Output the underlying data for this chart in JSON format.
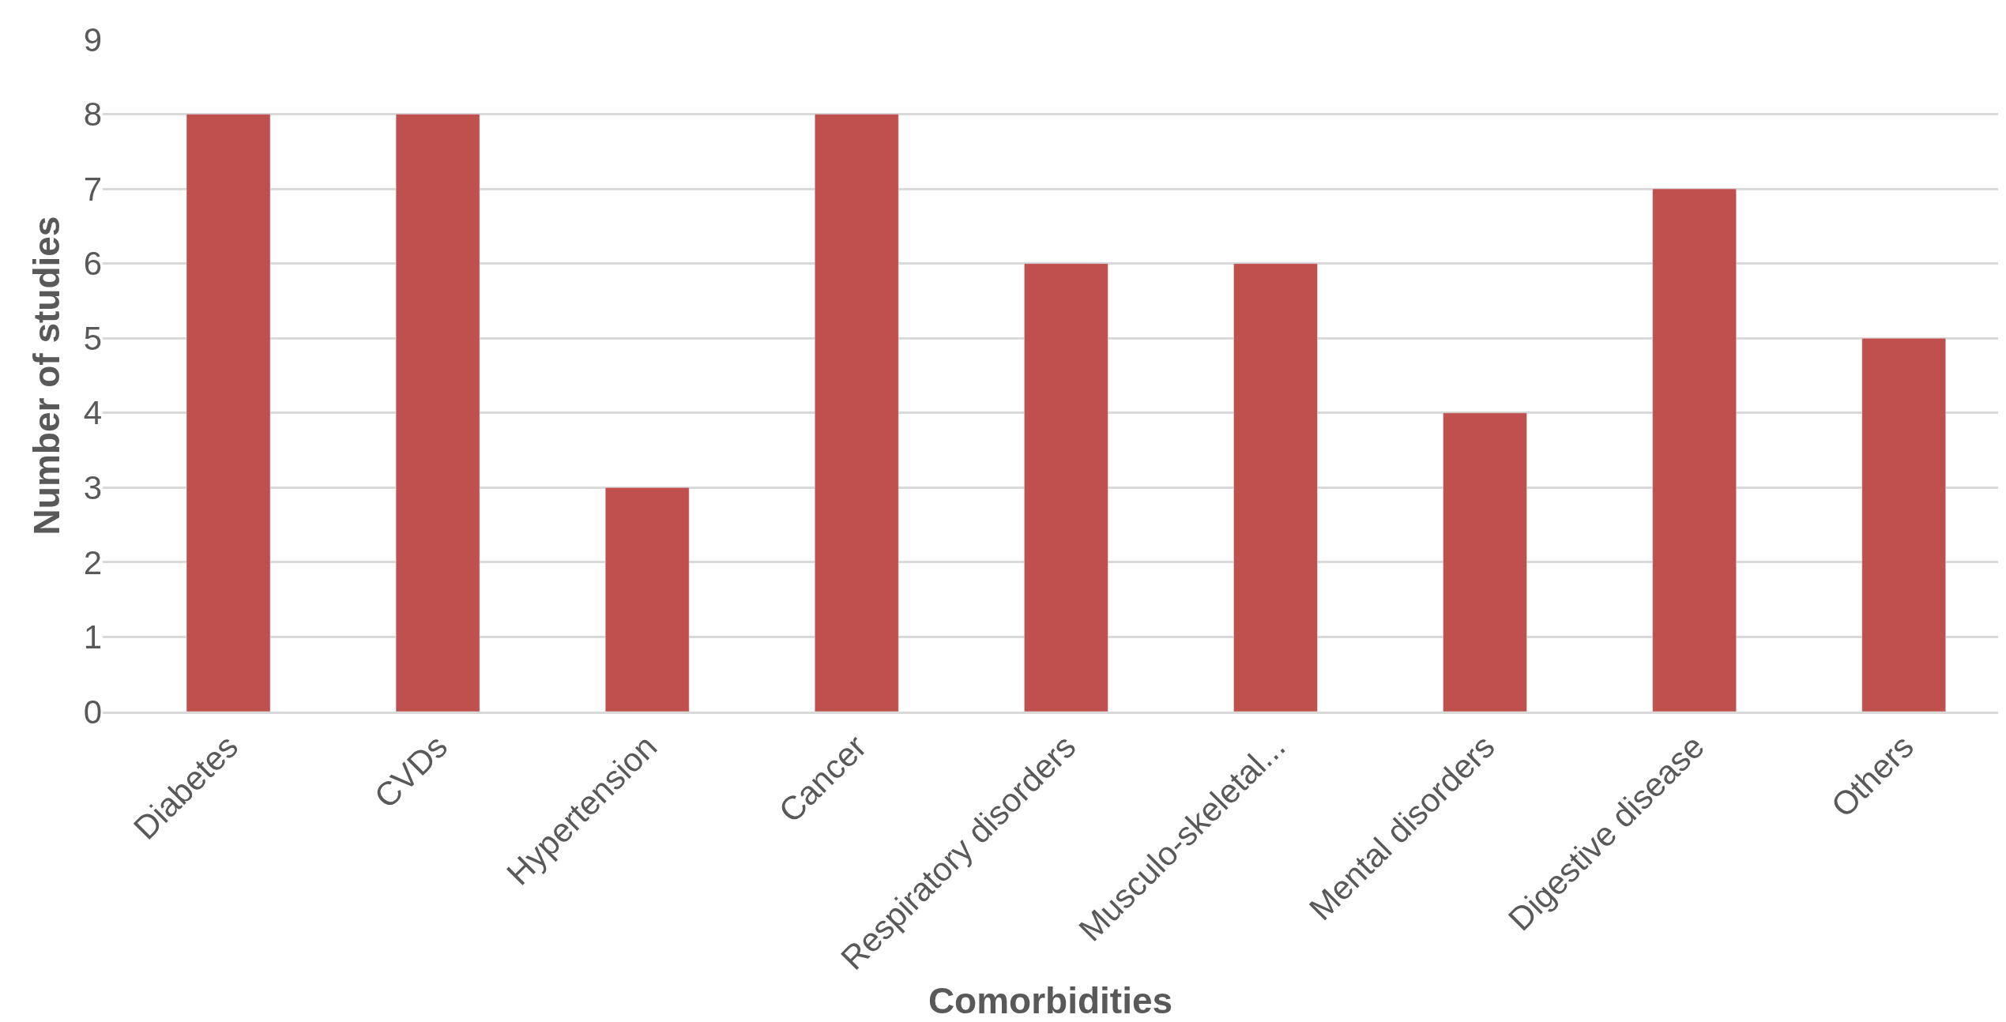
{
  "chart_data": {
    "type": "bar",
    "xlabel": "Comorbidities",
    "ylabel": "Number of studies",
    "categories": [
      "Diabetes",
      "CVDs",
      "Hypertension",
      "Cancer",
      "Respiratory disorders",
      "Musculo-skeletal...",
      "Mental disorders",
      "Digestive disease",
      "Others"
    ],
    "values": [
      8,
      8,
      3,
      8,
      6,
      6,
      4,
      7,
      5
    ],
    "color": "#c0504d",
    "ylim": [
      0,
      9
    ],
    "yticks": [
      0,
      1,
      2,
      3,
      4,
      5,
      6,
      7,
      8,
      9
    ],
    "grid": "y",
    "legend": false
  }
}
